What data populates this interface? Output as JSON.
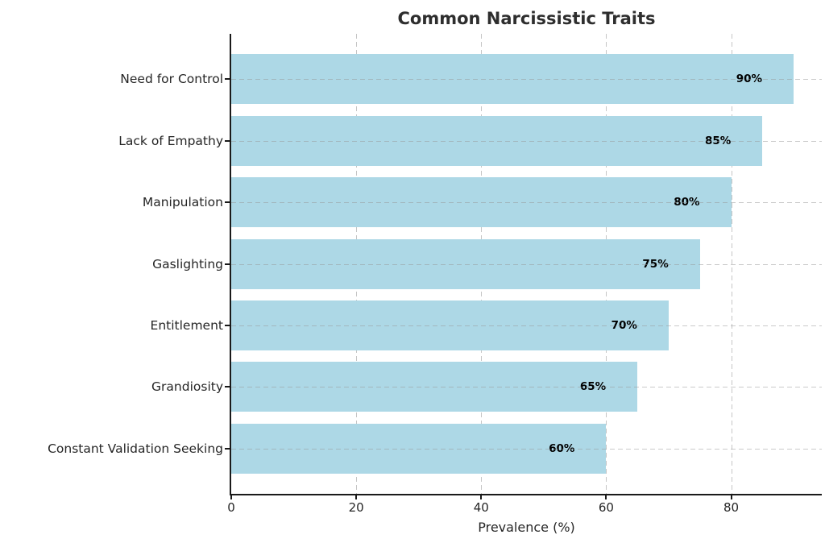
{
  "chart_data": {
    "type": "bar",
    "orientation": "horizontal",
    "title": "Common Narcissistic Traits",
    "categories": [
      "Need for Control",
      "Lack of Empathy",
      "Manipulation",
      "Gaslighting",
      "Entitlement",
      "Grandiosity",
      "Constant Validation Seeking"
    ],
    "values": [
      90,
      85,
      80,
      75,
      70,
      65,
      60
    ],
    "value_labels": [
      "90%",
      "85%",
      "80%",
      "75%",
      "70%",
      "65%",
      "60%"
    ],
    "xlabel": "Prevalence (%)",
    "ylabel": "",
    "xticks": [
      0,
      20,
      40,
      60,
      80
    ],
    "xlim": [
      0,
      94.5
    ],
    "grid": "dashed",
    "legend": "none",
    "bar_color": "#ADD8E6",
    "grid_color": "#969696",
    "spine_color": "#1a1a1a",
    "title_color": "#2e2e2e",
    "text_color": "#262626",
    "value_label_color": "#000000"
  }
}
